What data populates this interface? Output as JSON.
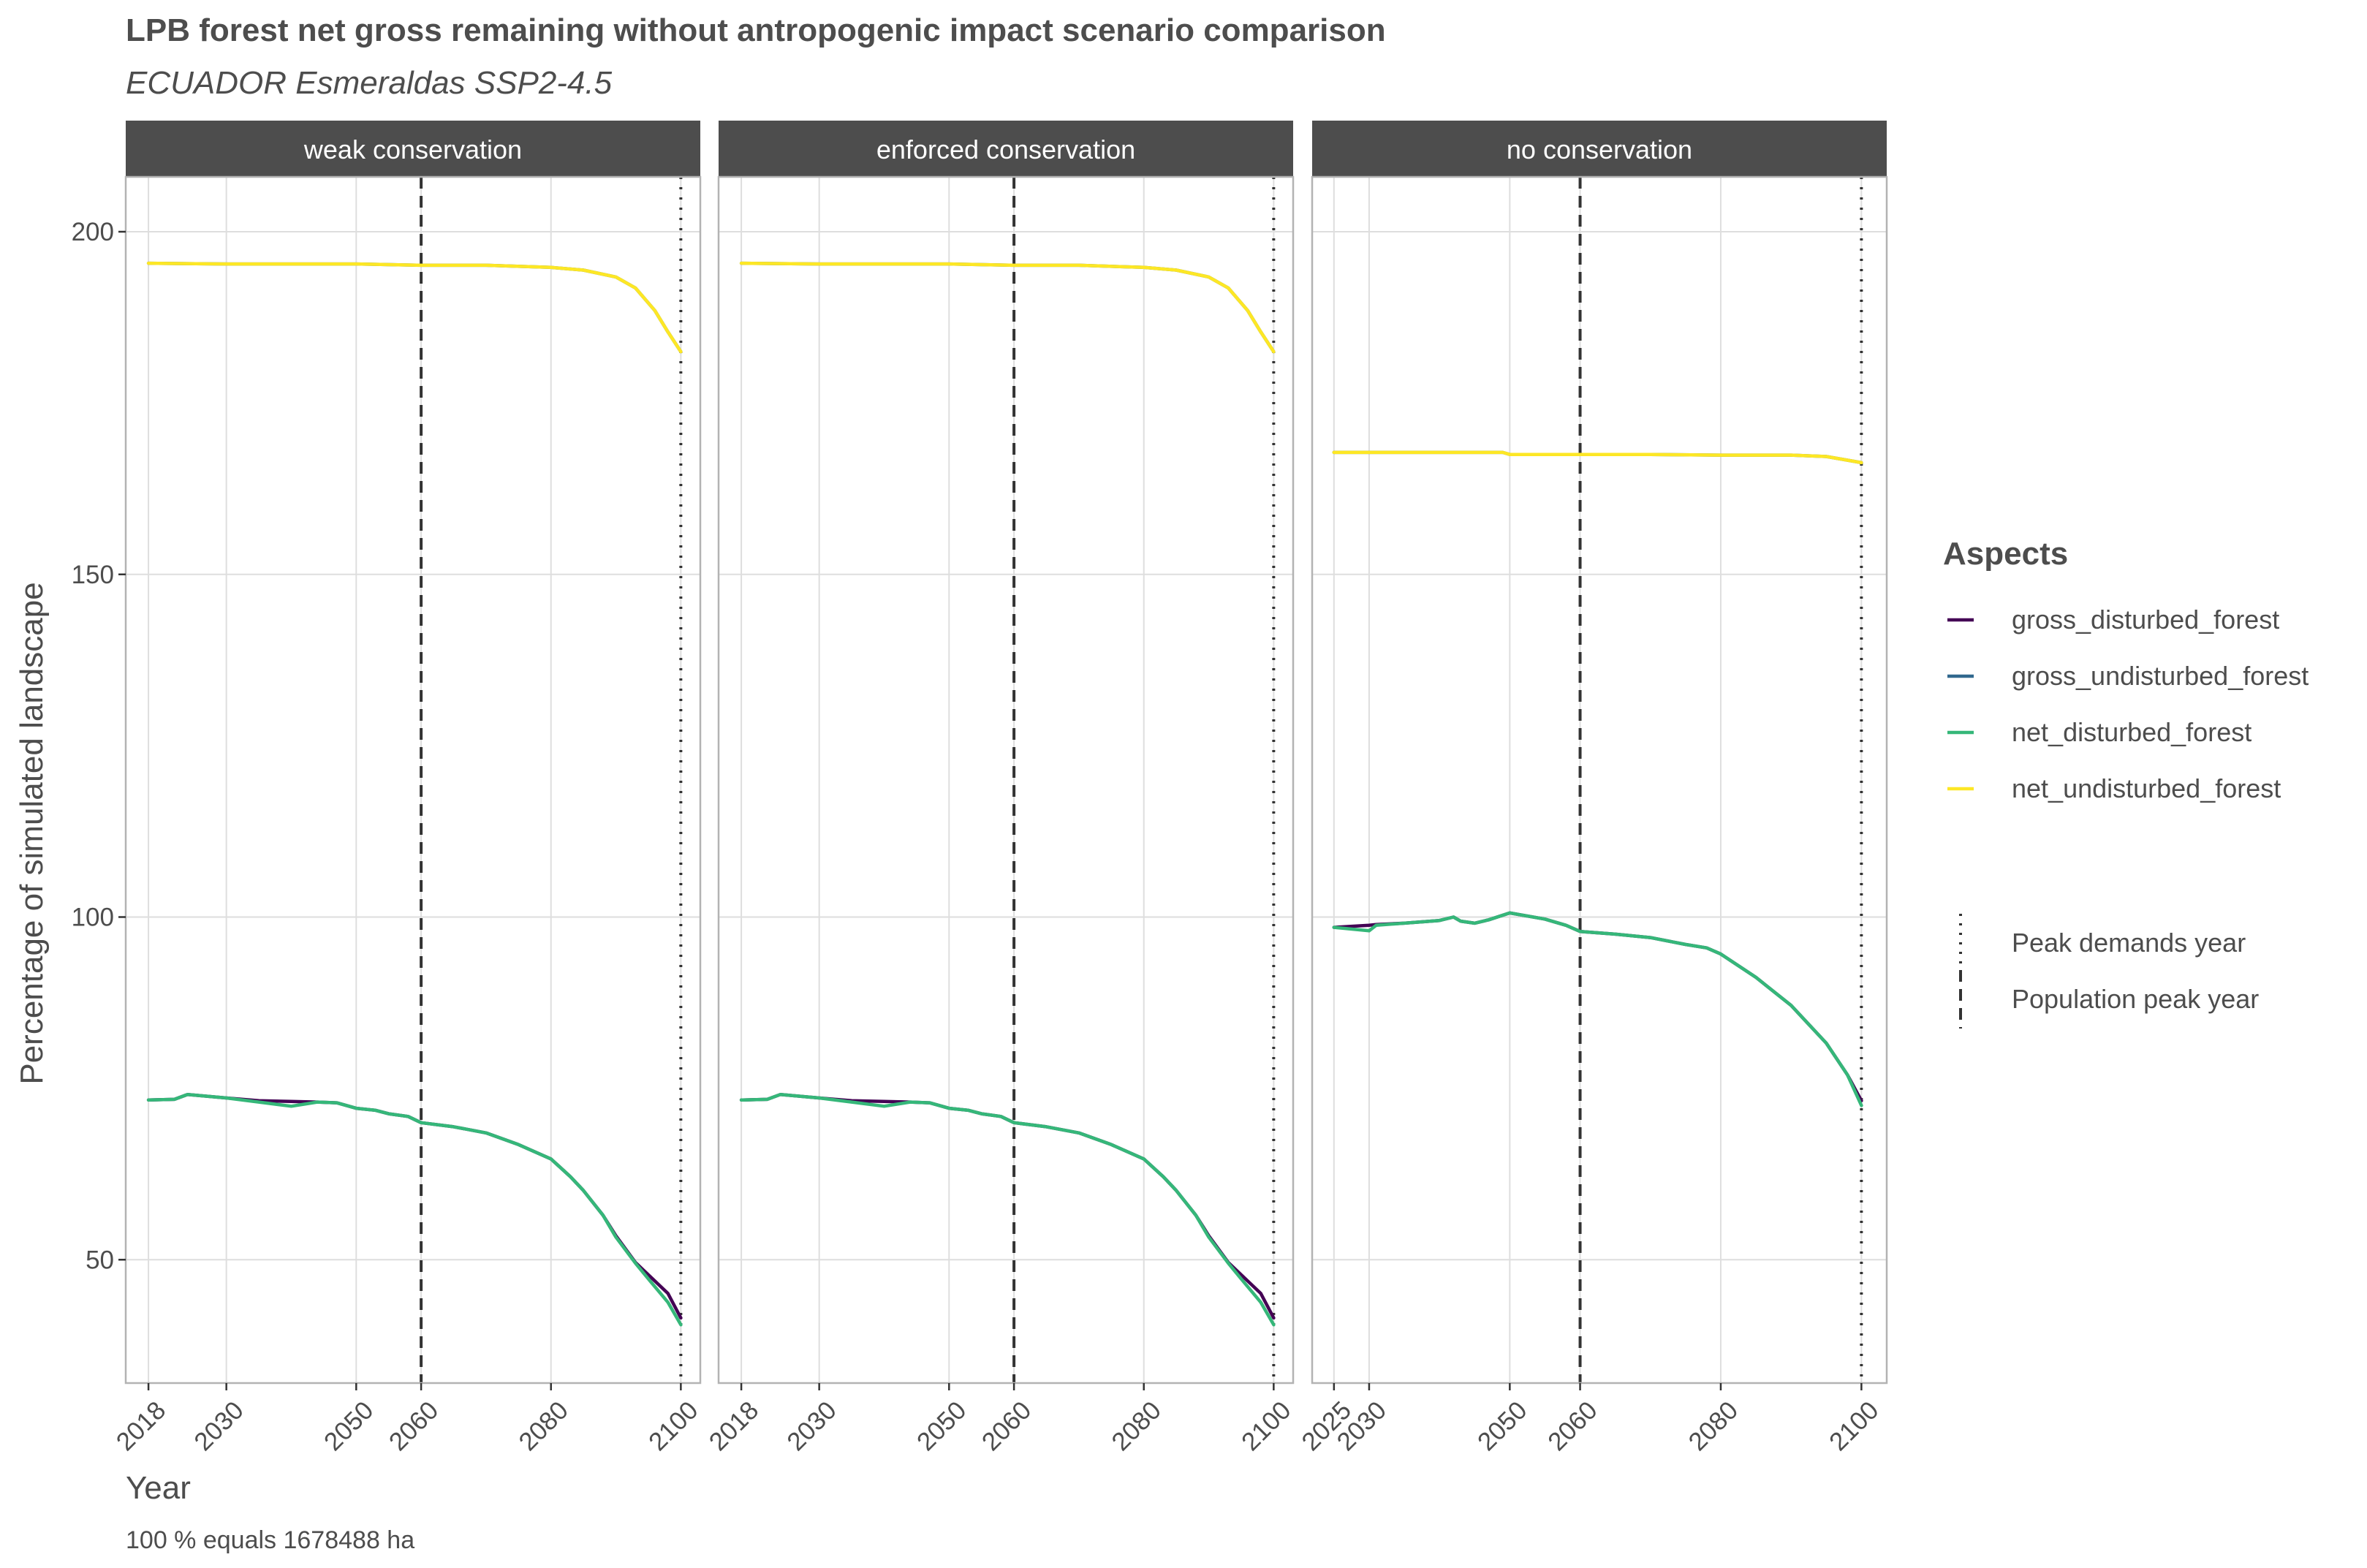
{
  "title": "LPB forest net gross remaining without antropogenic impact scenario comparison",
  "subtitle": "ECUADOR Esmeraldas SSP2-4.5",
  "caption": "100 % equals 1678488 ha",
  "colors": {
    "gross_disturbed_forest": "#440154",
    "gross_undisturbed_forest": "#31688E",
    "net_disturbed_forest": "#35B779",
    "net_undisturbed_forest": "#FDE725",
    "strip_bg": "#4D4D4D",
    "grid": "#DEDEDE",
    "vline": "#333333"
  },
  "legend": {
    "title": "Aspects",
    "items": [
      "gross_disturbed_forest",
      "gross_undisturbed_forest",
      "net_disturbed_forest",
      "net_undisturbed_forest"
    ],
    "line_items": [
      {
        "label": "Peak demands year",
        "style": "dotted"
      },
      {
        "label": "Population peak year",
        "style": "dashed"
      }
    ]
  },
  "chart_data": [
    {
      "type": "line",
      "panel": "weak conservation",
      "xlabel": "Year",
      "ylabel": "Percentage of simulated landscape",
      "ylim": [
        32,
        208
      ],
      "y_ticks": [
        50,
        100,
        150,
        200
      ],
      "xlim": [
        2014.5,
        2103
      ],
      "x_ticks": [
        2018,
        2030,
        2050,
        2060,
        2080,
        2100
      ],
      "vlines": {
        "population_peak_year": 2060,
        "peak_demands_year": 2100
      },
      "series": [
        {
          "name": "gross_disturbed_forest",
          "x": [
            2018,
            2022,
            2024,
            2030,
            2035,
            2040,
            2044,
            2047,
            2050,
            2053,
            2055,
            2058,
            2060,
            2065,
            2070,
            2075,
            2080,
            2083,
            2085,
            2088,
            2090,
            2093,
            2095,
            2098,
            2100
          ],
          "y": [
            73.3,
            73.4,
            74.1,
            73.6,
            73.2,
            73.1,
            73.0,
            72.9,
            72.1,
            71.8,
            71.3,
            70.9,
            70.0,
            69.4,
            68.5,
            66.8,
            64.7,
            62.1,
            60.1,
            56.5,
            53.5,
            49.6,
            47.8,
            45.1,
            41.5
          ]
        },
        {
          "name": "gross_undisturbed_forest",
          "x": [
            2018,
            2030,
            2040,
            2050,
            2060,
            2070,
            2080,
            2085,
            2090,
            2093,
            2096,
            2098,
            2100
          ],
          "y": [
            195.4,
            195.3,
            195.3,
            195.3,
            195.1,
            195.1,
            194.8,
            194.4,
            193.4,
            191.8,
            188.5,
            185.4,
            182.5
          ]
        },
        {
          "name": "net_disturbed_forest",
          "x": [
            2018,
            2022,
            2024,
            2030,
            2035,
            2040,
            2044,
            2047,
            2050,
            2053,
            2055,
            2058,
            2060,
            2065,
            2070,
            2075,
            2080,
            2083,
            2085,
            2088,
            2090,
            2093,
            2095,
            2098,
            2100
          ],
          "y": [
            73.3,
            73.4,
            74.1,
            73.6,
            73.0,
            72.4,
            73.0,
            72.9,
            72.1,
            71.8,
            71.3,
            70.9,
            70.0,
            69.4,
            68.5,
            66.8,
            64.7,
            62.1,
            60.1,
            56.5,
            53.3,
            49.5,
            47.2,
            43.8,
            40.5
          ]
        },
        {
          "name": "net_undisturbed_forest",
          "x": [
            2018,
            2030,
            2040,
            2050,
            2060,
            2070,
            2080,
            2085,
            2090,
            2093,
            2096,
            2098,
            2100
          ],
          "y": [
            195.4,
            195.3,
            195.3,
            195.3,
            195.1,
            195.1,
            194.8,
            194.4,
            193.4,
            191.8,
            188.5,
            185.4,
            182.5
          ]
        }
      ]
    },
    {
      "type": "line",
      "panel": "enforced conservation",
      "xlabel": "Year",
      "ylabel": "Percentage of simulated landscape",
      "ylim": [
        32,
        208
      ],
      "y_ticks": [
        50,
        100,
        150,
        200
      ],
      "xlim": [
        2014.5,
        2103
      ],
      "x_ticks": [
        2018,
        2030,
        2050,
        2060,
        2080,
        2100
      ],
      "vlines": {
        "population_peak_year": 2060,
        "peak_demands_year": 2100
      },
      "series": [
        {
          "name": "gross_disturbed_forest",
          "x": [
            2018,
            2022,
            2024,
            2030,
            2035,
            2040,
            2044,
            2047,
            2050,
            2053,
            2055,
            2058,
            2060,
            2065,
            2070,
            2075,
            2080,
            2083,
            2085,
            2088,
            2090,
            2093,
            2095,
            2098,
            2100
          ],
          "y": [
            73.3,
            73.4,
            74.1,
            73.6,
            73.2,
            73.1,
            73.0,
            72.9,
            72.1,
            71.8,
            71.3,
            70.9,
            70.0,
            69.4,
            68.5,
            66.8,
            64.7,
            62.1,
            60.1,
            56.5,
            53.5,
            49.6,
            47.8,
            45.1,
            41.5
          ]
        },
        {
          "name": "gross_undisturbed_forest",
          "x": [
            2018,
            2030,
            2040,
            2050,
            2060,
            2070,
            2080,
            2085,
            2090,
            2093,
            2096,
            2098,
            2100
          ],
          "y": [
            195.4,
            195.3,
            195.3,
            195.3,
            195.1,
            195.1,
            194.8,
            194.4,
            193.4,
            191.8,
            188.5,
            185.4,
            182.5
          ]
        },
        {
          "name": "net_disturbed_forest",
          "x": [
            2018,
            2022,
            2024,
            2030,
            2035,
            2040,
            2044,
            2047,
            2050,
            2053,
            2055,
            2058,
            2060,
            2065,
            2070,
            2075,
            2080,
            2083,
            2085,
            2088,
            2090,
            2093,
            2095,
            2098,
            2100
          ],
          "y": [
            73.3,
            73.4,
            74.1,
            73.6,
            73.0,
            72.4,
            73.0,
            72.9,
            72.1,
            71.8,
            71.3,
            70.9,
            70.0,
            69.4,
            68.5,
            66.8,
            64.7,
            62.1,
            60.1,
            56.5,
            53.3,
            49.5,
            47.2,
            43.8,
            40.5
          ]
        },
        {
          "name": "net_undisturbed_forest",
          "x": [
            2018,
            2030,
            2040,
            2050,
            2060,
            2070,
            2080,
            2085,
            2090,
            2093,
            2096,
            2098,
            2100
          ],
          "y": [
            195.4,
            195.3,
            195.3,
            195.3,
            195.1,
            195.1,
            194.8,
            194.4,
            193.4,
            191.8,
            188.5,
            185.4,
            182.5
          ]
        }
      ]
    },
    {
      "type": "line",
      "panel": "no conservation",
      "xlabel": "Year",
      "ylabel": "Percentage of simulated landscape",
      "ylim": [
        32,
        208
      ],
      "y_ticks": [
        50,
        100,
        150,
        200
      ],
      "xlim": [
        2021.9,
        2103.6
      ],
      "x_ticks": [
        2025,
        2030,
        2050,
        2060,
        2080,
        2100
      ],
      "vlines": {
        "population_peak_year": 2060,
        "peak_demands_year": 2100
      },
      "series": [
        {
          "name": "gross_disturbed_forest",
          "x": [
            2025,
            2030,
            2031,
            2035,
            2040,
            2042,
            2043,
            2045,
            2047,
            2050,
            2055,
            2058,
            2060,
            2065,
            2070,
            2075,
            2078,
            2080,
            2085,
            2090,
            2095,
            2098,
            2100
          ],
          "y": [
            98.5,
            98.8,
            98.9,
            99.1,
            99.5,
            100.0,
            99.4,
            99.1,
            99.6,
            100.6,
            99.7,
            98.8,
            97.9,
            97.5,
            97.0,
            96.0,
            95.5,
            94.6,
            91.2,
            87.1,
            81.6,
            77.0,
            73.2
          ]
        },
        {
          "name": "gross_undisturbed_forest",
          "x": [
            2025,
            2030,
            2040,
            2049,
            2050,
            2060,
            2070,
            2080,
            2090,
            2095,
            2100
          ],
          "y": [
            167.8,
            167.8,
            167.8,
            167.8,
            167.5,
            167.5,
            167.5,
            167.4,
            167.4,
            167.2,
            166.3
          ]
        },
        {
          "name": "net_disturbed_forest",
          "x": [
            2025,
            2030,
            2031,
            2035,
            2040,
            2042,
            2043,
            2045,
            2047,
            2050,
            2055,
            2058,
            2060,
            2065,
            2070,
            2075,
            2078,
            2080,
            2085,
            2090,
            2095,
            2098,
            2100
          ],
          "y": [
            98.5,
            98.0,
            98.8,
            99.1,
            99.5,
            100.0,
            99.4,
            99.1,
            99.6,
            100.6,
            99.7,
            98.8,
            97.9,
            97.5,
            97.0,
            96.0,
            95.5,
            94.6,
            91.2,
            87.1,
            81.6,
            77.0,
            72.5
          ]
        },
        {
          "name": "net_undisturbed_forest",
          "x": [
            2025,
            2030,
            2040,
            2049,
            2050,
            2060,
            2070,
            2080,
            2090,
            2095,
            2100
          ],
          "y": [
            167.8,
            167.8,
            167.8,
            167.8,
            167.5,
            167.5,
            167.5,
            167.4,
            167.4,
            167.2,
            166.3
          ]
        }
      ]
    }
  ]
}
